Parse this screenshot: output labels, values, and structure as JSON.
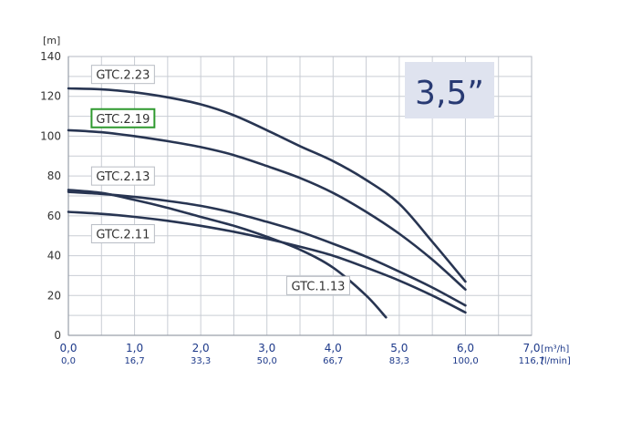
{
  "chart_data": {
    "type": "line",
    "ylabel": "[m]",
    "ylim": [
      0,
      140
    ],
    "yticks": [
      0,
      20,
      40,
      60,
      80,
      100,
      120,
      140
    ],
    "xlim": [
      0,
      7
    ],
    "xticks": [
      {
        "value": 0,
        "top": "0,0",
        "bottom": "0,0"
      },
      {
        "value": 1,
        "top": "1,0",
        "bottom": "16,7"
      },
      {
        "value": 2,
        "top": "2,0",
        "bottom": "33,3"
      },
      {
        "value": 3,
        "top": "3,0",
        "bottom": "50,0"
      },
      {
        "value": 4,
        "top": "4,0",
        "bottom": "66,7"
      },
      {
        "value": 5,
        "top": "5,0",
        "bottom": "83,3"
      },
      {
        "value": 6,
        "top": "6,0",
        "bottom": "100,0"
      },
      {
        "value": 7,
        "top": "7,0",
        "bottom": "116,7"
      }
    ],
    "xunit_top": "[m³/h]",
    "xunit_bottom": "[l/min]",
    "grid": true,
    "badge": "3,5”",
    "colors": {
      "curve": "#283552",
      "grid": "#c9cdd4",
      "badge_bg": "#dfe3ef",
      "badge_text": "#283a73",
      "highlight": "#2f9a2f"
    },
    "series": [
      {
        "name": "GTC.2.23",
        "x": [
          0,
          0.5,
          1,
          1.5,
          2,
          2.5,
          3,
          3.5,
          4,
          4.5,
          5,
          5.5,
          6
        ],
        "y": [
          124,
          123.5,
          122,
          119.5,
          116,
          110.5,
          103,
          95,
          87.5,
          78,
          66,
          47,
          27
        ]
      },
      {
        "name": "GTC.2.19",
        "x": [
          0,
          0.5,
          1,
          1.5,
          2,
          2.5,
          3,
          3.5,
          4,
          4.5,
          5,
          5.5,
          6
        ],
        "y": [
          103,
          102,
          100,
          97.5,
          94.5,
          90.5,
          85,
          79,
          71.5,
          62,
          51,
          38,
          23
        ]
      },
      {
        "name": "GTC.2.13",
        "x": [
          0,
          0.5,
          1,
          1.5,
          2,
          2.5,
          3,
          3.5,
          4,
          4.5,
          5,
          5.5,
          6
        ],
        "y": [
          72,
          71,
          69.5,
          67.5,
          65,
          61.5,
          57,
          52,
          46,
          39.5,
          32,
          24,
          15
        ]
      },
      {
        "name": "GTC.2.11",
        "x": [
          0,
          0.5,
          1,
          1.5,
          2,
          2.5,
          3,
          3.5,
          4,
          4.5,
          5,
          5.5,
          6
        ],
        "y": [
          62,
          61,
          59.5,
          57.5,
          55,
          52,
          48.5,
          44.5,
          40,
          34,
          27.5,
          20,
          11.5
        ]
      },
      {
        "name": "GTC.1.13",
        "x": [
          0,
          0.5,
          1,
          1.5,
          2,
          2.5,
          3,
          3.5,
          4,
          4.5,
          4.8
        ],
        "y": [
          73,
          71.5,
          68,
          64,
          59.5,
          55,
          49.5,
          43,
          34,
          20,
          9
        ]
      }
    ],
    "labels": [
      {
        "text": "GTC.2.23",
        "x": 0.35,
        "y": 131,
        "highlight": false
      },
      {
        "text": "GTC.2.19",
        "x": 0.35,
        "y": 109,
        "highlight": true
      },
      {
        "text": "GTC.2.13",
        "x": 0.35,
        "y": 80,
        "highlight": false
      },
      {
        "text": "GTC.2.11",
        "x": 0.35,
        "y": 51,
        "highlight": false
      },
      {
        "text": "GTC.1.13",
        "x": 3.3,
        "y": 25,
        "highlight": false
      }
    ]
  }
}
